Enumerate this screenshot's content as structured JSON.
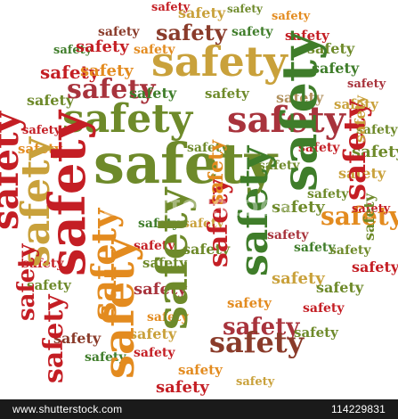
{
  "image": {
    "word": "safety",
    "palette": {
      "red": "#c41e24",
      "brick": "#a8333c",
      "brown": "#8a3b2a",
      "green": "#3f7d2a",
      "olive": "#6e8a2a",
      "gold": "#c9a13b",
      "orange": "#e38b1f",
      "tan": "#b0905c"
    }
  },
  "footer": {
    "site": "www.shutterstock.com",
    "id": "114229831"
  },
  "watermark": "shutterstock"
}
